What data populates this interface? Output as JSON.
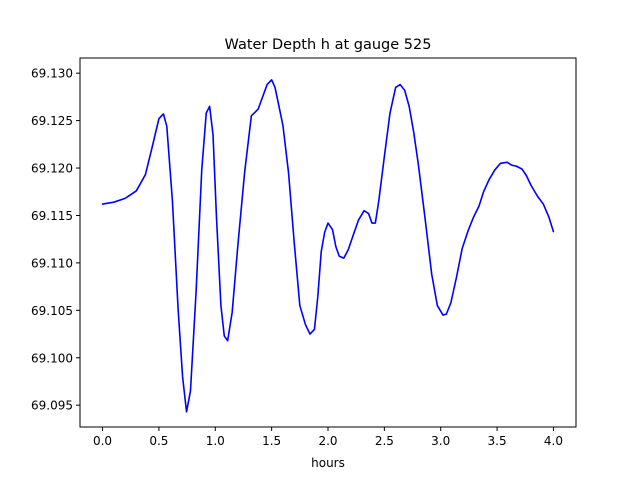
{
  "chart_data": {
    "type": "line",
    "title": "Water Depth h at gauge 525",
    "xlabel": "hours",
    "ylabel": "",
    "xlim": [
      -0.2,
      4.2
    ],
    "ylim": [
      69.0927,
      69.1316
    ],
    "xticks": [
      0.0,
      0.5,
      1.0,
      1.5,
      2.0,
      2.5,
      3.0,
      3.5,
      4.0
    ],
    "xtick_labels": [
      "0.0",
      "0.5",
      "1.0",
      "1.5",
      "2.0",
      "2.5",
      "3.0",
      "3.5",
      "4.0"
    ],
    "yticks": [
      69.095,
      69.1,
      69.105,
      69.11,
      69.115,
      69.12,
      69.125,
      69.13
    ],
    "ytick_labels": [
      "69.095",
      "69.100",
      "69.105",
      "69.110",
      "69.115",
      "69.120",
      "69.125",
      "69.130"
    ],
    "grid": false,
    "series": [
      {
        "color": "#0000ff",
        "x": [
          0.0,
          0.1,
          0.2,
          0.3,
          0.38,
          0.44,
          0.5,
          0.54,
          0.57,
          0.62,
          0.67,
          0.71,
          0.745,
          0.78,
          0.83,
          0.88,
          0.92,
          0.95,
          0.98,
          1.01,
          1.05,
          1.08,
          1.11,
          1.15,
          1.2,
          1.26,
          1.32,
          1.38,
          1.42,
          1.46,
          1.5,
          1.53,
          1.56,
          1.6,
          1.65,
          1.7,
          1.75,
          1.8,
          1.84,
          1.88,
          1.91,
          1.94,
          1.97,
          2.0,
          2.04,
          2.07,
          2.1,
          2.14,
          2.18,
          2.22,
          2.27,
          2.32,
          2.36,
          2.39,
          2.42,
          2.45,
          2.5,
          2.55,
          2.6,
          2.64,
          2.68,
          2.72,
          2.76,
          2.8,
          2.86,
          2.92,
          2.97,
          3.02,
          3.05,
          3.09,
          3.14,
          3.19,
          3.24,
          3.29,
          3.34,
          3.38,
          3.43,
          3.48,
          3.53,
          3.59,
          3.63,
          3.67,
          3.72,
          3.76,
          3.8,
          3.86,
          3.91,
          3.96,
          4.0
        ],
        "y": [
          69.1162,
          69.1164,
          69.1168,
          69.1176,
          69.1193,
          69.1222,
          69.1252,
          69.1257,
          69.1244,
          69.1165,
          69.1052,
          69.098,
          69.0943,
          69.0965,
          69.107,
          69.1198,
          69.1258,
          69.1265,
          69.1235,
          69.115,
          69.1055,
          69.1023,
          69.1018,
          69.1048,
          69.1118,
          69.1195,
          69.1255,
          69.1262,
          69.1275,
          69.1288,
          69.1293,
          69.1285,
          69.1268,
          69.1245,
          69.1195,
          69.1122,
          69.1055,
          69.1035,
          69.1025,
          69.103,
          69.1065,
          69.1112,
          69.1132,
          69.1142,
          69.1135,
          69.1117,
          69.1107,
          69.1105,
          69.1114,
          69.1128,
          69.1145,
          69.1155,
          69.1152,
          69.1142,
          69.1142,
          69.1165,
          69.1212,
          69.1258,
          69.1285,
          69.1288,
          69.1282,
          69.1265,
          69.1238,
          69.1205,
          69.1148,
          69.1088,
          69.1055,
          69.1045,
          69.1046,
          69.1058,
          69.1085,
          69.1115,
          69.1133,
          69.1148,
          69.116,
          69.1175,
          69.1188,
          69.1198,
          69.1205,
          69.1206,
          69.1203,
          69.1202,
          69.1199,
          69.1192,
          69.1182,
          69.117,
          69.1162,
          69.1148,
          69.1133
        ]
      }
    ]
  }
}
